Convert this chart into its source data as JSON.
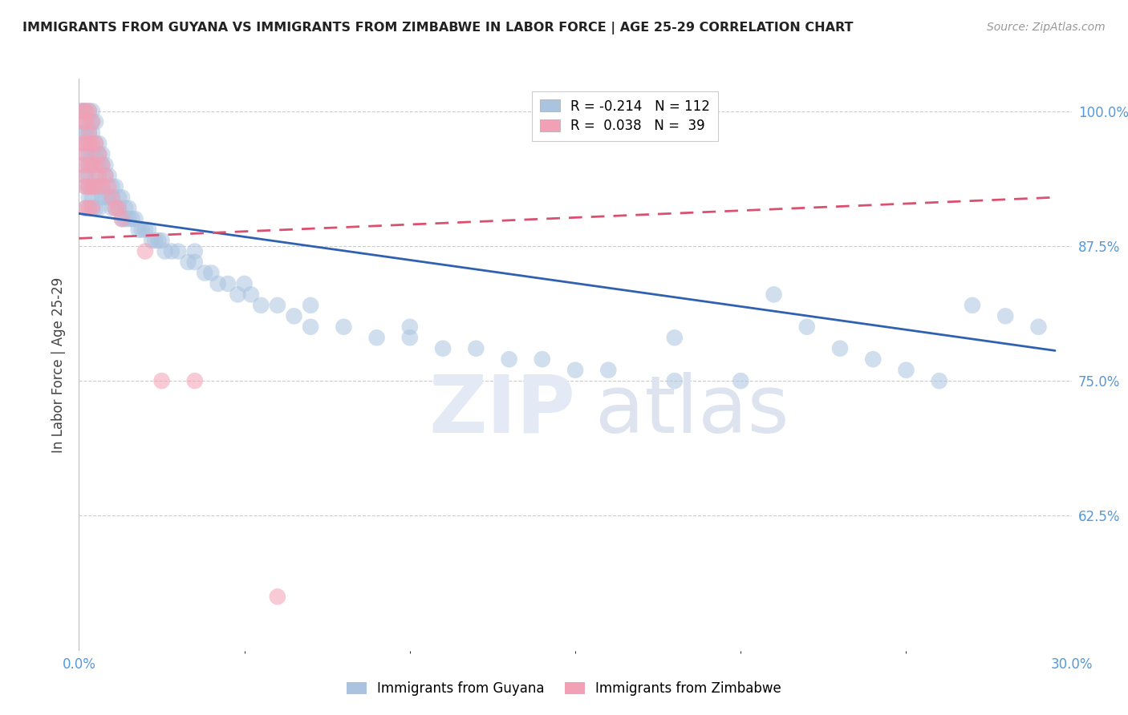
{
  "title": "IMMIGRANTS FROM GUYANA VS IMMIGRANTS FROM ZIMBABWE IN LABOR FORCE | AGE 25-29 CORRELATION CHART",
  "source": "Source: ZipAtlas.com",
  "ylabel": "In Labor Force | Age 25-29",
  "legend_blue_label": "Immigrants from Guyana",
  "legend_pink_label": "Immigrants from Zimbabwe",
  "legend_blue_text": "R = -0.214   N = 112",
  "legend_pink_text": "R =  0.038   N =  39",
  "xlim": [
    0.0,
    0.3
  ],
  "ylim": [
    0.5,
    1.03
  ],
  "yticks": [
    0.625,
    0.75,
    0.875,
    1.0
  ],
  "ytick_labels": [
    "62.5%",
    "75.0%",
    "87.5%",
    "100.0%"
  ],
  "blue_color": "#aac4e0",
  "pink_color": "#f2a0b5",
  "blue_line_color": "#3060b0",
  "pink_line_color": "#d95070",
  "background_color": "#ffffff",
  "grid_color": "#cccccc",
  "axis_label_color": "#5599dd",
  "title_color": "#222222",
  "blue_scatter_x": [
    0.001,
    0.001,
    0.001,
    0.002,
    0.002,
    0.002,
    0.002,
    0.002,
    0.002,
    0.002,
    0.002,
    0.002,
    0.003,
    0.003,
    0.003,
    0.003,
    0.003,
    0.003,
    0.003,
    0.003,
    0.003,
    0.004,
    0.004,
    0.004,
    0.004,
    0.004,
    0.004,
    0.004,
    0.004,
    0.005,
    0.005,
    0.005,
    0.005,
    0.005,
    0.005,
    0.006,
    0.006,
    0.006,
    0.006,
    0.006,
    0.007,
    0.007,
    0.007,
    0.007,
    0.008,
    0.008,
    0.008,
    0.009,
    0.009,
    0.01,
    0.01,
    0.01,
    0.011,
    0.011,
    0.012,
    0.012,
    0.013,
    0.013,
    0.014,
    0.014,
    0.015,
    0.015,
    0.016,
    0.017,
    0.018,
    0.019,
    0.02,
    0.021,
    0.022,
    0.023,
    0.024,
    0.025,
    0.026,
    0.028,
    0.03,
    0.033,
    0.035,
    0.038,
    0.04,
    0.042,
    0.045,
    0.048,
    0.052,
    0.055,
    0.06,
    0.065,
    0.07,
    0.08,
    0.09,
    0.1,
    0.11,
    0.12,
    0.13,
    0.14,
    0.15,
    0.16,
    0.18,
    0.2,
    0.21,
    0.22,
    0.23,
    0.24,
    0.25,
    0.26,
    0.27,
    0.28,
    0.29,
    0.035,
    0.05,
    0.07,
    0.1,
    0.18
  ],
  "blue_scatter_y": [
    1.0,
    1.0,
    0.98,
    1.0,
    0.99,
    0.98,
    0.97,
    0.96,
    0.95,
    0.94,
    0.93,
    0.91,
    1.0,
    0.99,
    0.98,
    0.97,
    0.96,
    0.95,
    0.94,
    0.93,
    0.92,
    1.0,
    0.99,
    0.98,
    0.96,
    0.95,
    0.93,
    0.92,
    0.91,
    0.99,
    0.97,
    0.96,
    0.94,
    0.93,
    0.91,
    0.97,
    0.96,
    0.95,
    0.93,
    0.91,
    0.96,
    0.95,
    0.93,
    0.92,
    0.95,
    0.94,
    0.92,
    0.94,
    0.92,
    0.93,
    0.92,
    0.91,
    0.93,
    0.91,
    0.92,
    0.91,
    0.92,
    0.9,
    0.91,
    0.9,
    0.91,
    0.9,
    0.9,
    0.9,
    0.89,
    0.89,
    0.89,
    0.89,
    0.88,
    0.88,
    0.88,
    0.88,
    0.87,
    0.87,
    0.87,
    0.86,
    0.86,
    0.85,
    0.85,
    0.84,
    0.84,
    0.83,
    0.83,
    0.82,
    0.82,
    0.81,
    0.8,
    0.8,
    0.79,
    0.79,
    0.78,
    0.78,
    0.77,
    0.77,
    0.76,
    0.76,
    0.75,
    0.75,
    0.83,
    0.8,
    0.78,
    0.77,
    0.76,
    0.75,
    0.82,
    0.81,
    0.8,
    0.87,
    0.84,
    0.82,
    0.8,
    0.79
  ],
  "pink_scatter_x": [
    0.001,
    0.001,
    0.001,
    0.001,
    0.002,
    0.002,
    0.002,
    0.002,
    0.002,
    0.002,
    0.002,
    0.003,
    0.003,
    0.003,
    0.003,
    0.003,
    0.003,
    0.004,
    0.004,
    0.004,
    0.004,
    0.004,
    0.005,
    0.005,
    0.005,
    0.006,
    0.006,
    0.007,
    0.007,
    0.008,
    0.009,
    0.01,
    0.011,
    0.012,
    0.013,
    0.02,
    0.025,
    0.035,
    0.06
  ],
  "pink_scatter_y": [
    1.0,
    0.99,
    0.97,
    0.95,
    1.0,
    0.99,
    0.97,
    0.96,
    0.94,
    0.93,
    0.91,
    1.0,
    0.98,
    0.97,
    0.95,
    0.93,
    0.91,
    0.99,
    0.97,
    0.95,
    0.93,
    0.91,
    0.97,
    0.95,
    0.93,
    0.96,
    0.94,
    0.95,
    0.93,
    0.94,
    0.93,
    0.92,
    0.91,
    0.91,
    0.9,
    0.87,
    0.75,
    0.75,
    0.55
  ],
  "blue_line_x": [
    0.0,
    0.295
  ],
  "blue_line_y": [
    0.905,
    0.778
  ],
  "pink_line_x": [
    0.0,
    0.295
  ],
  "pink_line_y": [
    0.882,
    0.92
  ]
}
